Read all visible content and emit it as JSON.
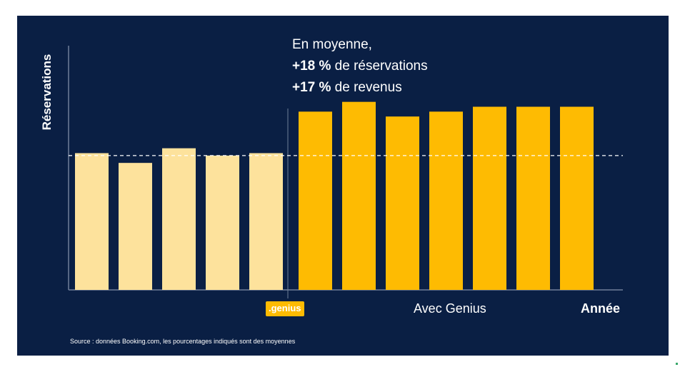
{
  "headline": {
    "line1": "En moyenne,",
    "line2_pct": "+18 %",
    "line2_text": " de réservations",
    "line3_pct": "+17 %",
    "line3_text": " de revenus"
  },
  "badge": ".genius",
  "with_genius_label": "Avec Genius",
  "source": "Source : données Booking.com, les pourcentages indiqués sont des moyennes",
  "colors": {
    "background": "#0a1f44",
    "before": "#fde29c",
    "after": "#febb02",
    "baseline": "#ffffff"
  },
  "chart_data": {
    "type": "bar",
    "title": "",
    "ylabel": "Réservations",
    "xlabel": "Année",
    "ylim": [
      0,
      100
    ],
    "baseline": 55,
    "grid": false,
    "series": [
      {
        "name": "",
        "values": [
          56,
          52,
          58,
          55,
          56
        ],
        "color": "#fde29c"
      },
      {
        "name": "Avec Genius",
        "values": [
          73,
          77,
          71,
          73,
          75,
          75,
          75
        ],
        "color": "#febb02"
      }
    ]
  }
}
